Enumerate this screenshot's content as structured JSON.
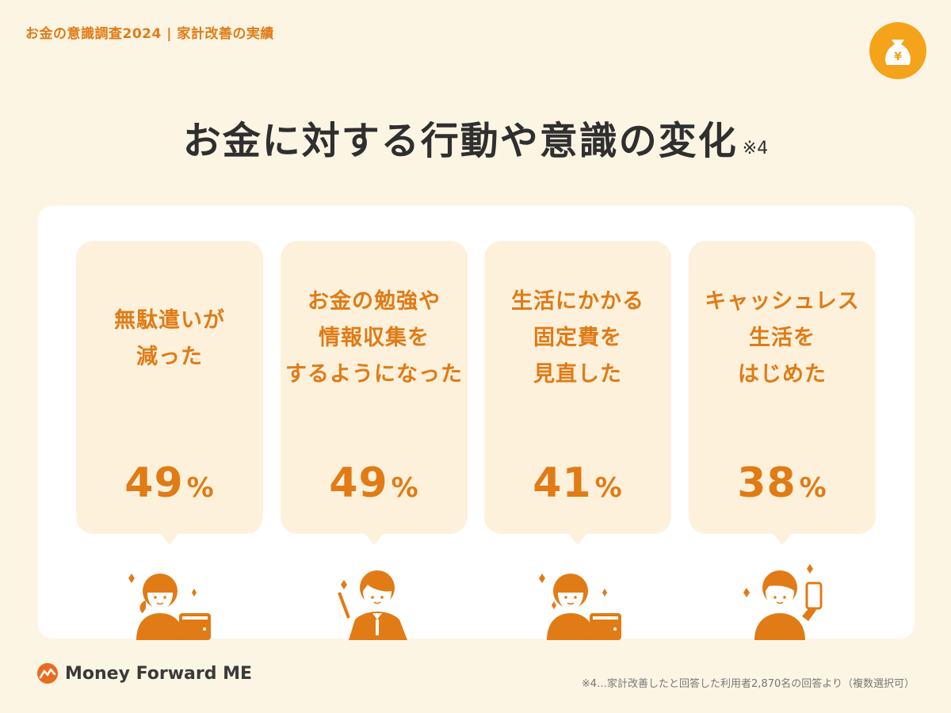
{
  "header": {
    "label": "お金の意識調査2024 | 家計改善の実績"
  },
  "badge": {
    "icon": "money-bag-icon",
    "symbol": "¥",
    "color": "#f5a31a"
  },
  "title": {
    "text": "お金に対する行動や意識の変化",
    "note": "※4"
  },
  "colors": {
    "accent": "#e07b16",
    "background": "#fdf5e4",
    "card": "#fdf1dc"
  },
  "cards": [
    {
      "lines": [
        "無駄遣いが",
        "減った"
      ],
      "value": "49",
      "unit": "%",
      "icon": "person-wallet-icon"
    },
    {
      "lines": [
        "お金の勉強や",
        "情報収集を",
        "するようになった"
      ],
      "value": "49",
      "unit": "%",
      "icon": "person-pointer-icon"
    },
    {
      "lines": [
        "生活にかかる",
        "固定費を",
        "見直した"
      ],
      "value": "41",
      "unit": "%",
      "icon": "person-wallet-icon"
    },
    {
      "lines": [
        "キャッシュレス",
        "生活を",
        "はじめた"
      ],
      "value": "38",
      "unit": "%",
      "icon": "person-smartphone-icon"
    }
  ],
  "footer": {
    "logo_text": "Money Forward ME",
    "footnote": "※4…家計改善したと回答した利用者2,870名の回答より（複数選択可）"
  }
}
